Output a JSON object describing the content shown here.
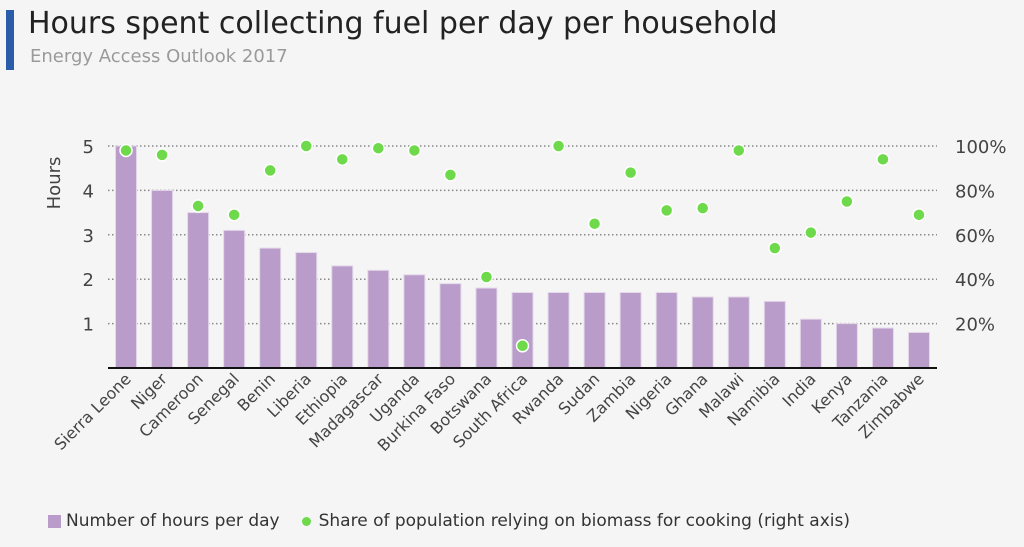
{
  "title": "Hours spent collecting fuel per day per household",
  "subtitle": "Energy Access Outlook 2017",
  "colors": {
    "accent": "#2a5caa",
    "bars": "#b99cc9",
    "dots": "#6ed94a"
  },
  "chart_data": {
    "type": "bar+scatter",
    "ylabel": "Hours",
    "ylim": [
      0,
      5
    ],
    "y_ticks": [
      "1",
      "2",
      "3",
      "4",
      "5"
    ],
    "y2lim": [
      0,
      100
    ],
    "y2_ticks": [
      "20%",
      "40%",
      "60%",
      "80%",
      "100%"
    ],
    "grid": true,
    "legend_position": "bottom",
    "categories": [
      "Sierra Leone",
      "Niger",
      "Cameroon",
      "Senegal",
      "Benin",
      "Liberia",
      "Ethiopia",
      "Madagascar",
      "Uganda",
      "Burkina Faso",
      "Botswana",
      "South Africa",
      "Rwanda",
      "Sudan",
      "Zambia",
      "Nigeria",
      "Ghana",
      "Malawi",
      "Namibia",
      "India",
      "Kenya",
      "Tanzania",
      "Zimbabwe"
    ],
    "series": [
      {
        "name": "Number of hours per day",
        "type": "bar",
        "axis": "left",
        "values": [
          5.0,
          4.0,
          3.5,
          3.1,
          2.7,
          2.6,
          2.3,
          2.2,
          2.1,
          1.9,
          1.8,
          1.7,
          1.7,
          1.7,
          1.7,
          1.7,
          1.6,
          1.6,
          1.5,
          1.1,
          1.0,
          0.9,
          0.8
        ]
      },
      {
        "name": "Share of population relying on biomass for cooking (right axis)",
        "type": "scatter",
        "axis": "right",
        "values": [
          98,
          96,
          73,
          69,
          89,
          100,
          94,
          99,
          98,
          87,
          41,
          10,
          100,
          65,
          88,
          71,
          72,
          98,
          54,
          61,
          75,
          94,
          69
        ]
      }
    ]
  }
}
